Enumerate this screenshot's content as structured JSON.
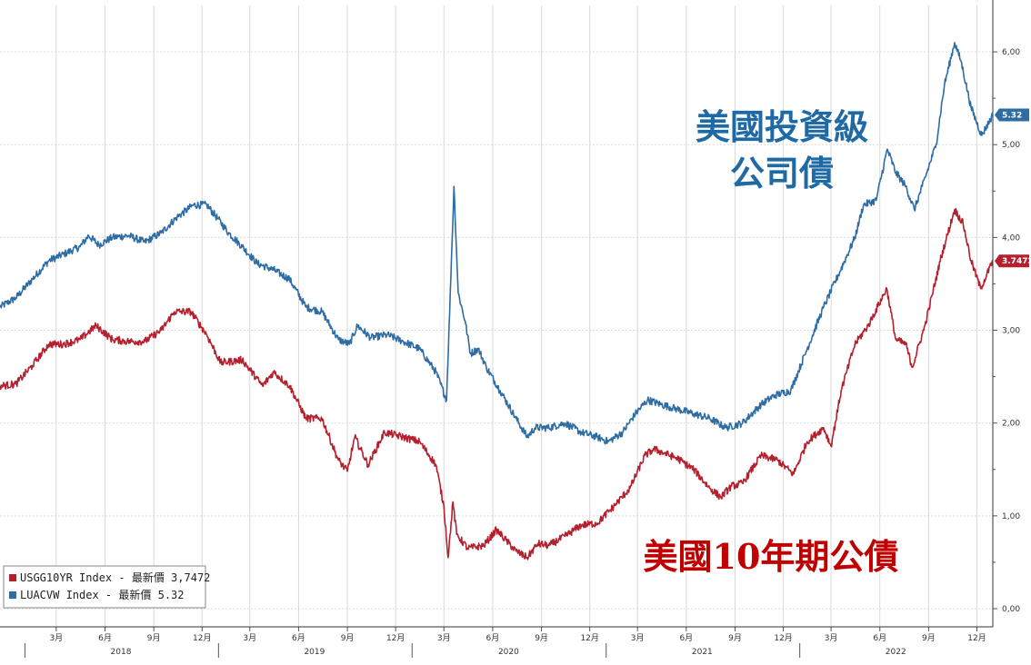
{
  "chart_data": {
    "type": "line",
    "title": "",
    "xlabel": "",
    "ylabel": "",
    "ylim": [
      0,
      6.5
    ],
    "xlim": [
      "2017-11-15",
      "2022-12-31"
    ],
    "y_ticks": [
      "0,00",
      "1,00",
      "2,00",
      "3,00",
      "4,00",
      "5,00",
      "6,00"
    ],
    "x_month_ticks": [
      {
        "date": "2018-03-01",
        "label": "3月"
      },
      {
        "date": "2018-06-01",
        "label": "6月"
      },
      {
        "date": "2018-09-01",
        "label": "9月"
      },
      {
        "date": "2018-12-01",
        "label": "12月"
      },
      {
        "date": "2019-03-01",
        "label": "3月"
      },
      {
        "date": "2019-06-01",
        "label": "6月"
      },
      {
        "date": "2019-09-01",
        "label": "9月"
      },
      {
        "date": "2019-12-01",
        "label": "12月"
      },
      {
        "date": "2020-03-01",
        "label": "3月"
      },
      {
        "date": "2020-06-01",
        "label": "6月"
      },
      {
        "date": "2020-09-01",
        "label": "9月"
      },
      {
        "date": "2020-12-01",
        "label": "12月"
      },
      {
        "date": "2021-03-01",
        "label": "3月"
      },
      {
        "date": "2021-06-01",
        "label": "6月"
      },
      {
        "date": "2021-09-01",
        "label": "9月"
      },
      {
        "date": "2021-12-01",
        "label": "12月"
      },
      {
        "date": "2022-03-01",
        "label": "3月"
      },
      {
        "date": "2022-06-01",
        "label": "6月"
      },
      {
        "date": "2022-09-01",
        "label": "9月"
      },
      {
        "date": "2022-12-01",
        "label": "12月"
      }
    ],
    "x_year_labels": [
      {
        "date": "2018-07-01",
        "label": "2018"
      },
      {
        "date": "2019-07-01",
        "label": "2019"
      },
      {
        "date": "2020-07-01",
        "label": "2020"
      },
      {
        "date": "2021-07-01",
        "label": "2021"
      },
      {
        "date": "2022-07-01",
        "label": "2022"
      }
    ],
    "grid": true,
    "legend_position": "bottom-left",
    "series": [
      {
        "name": "LUACVW Index - 最新價    5.32",
        "color": "#2e6ca4",
        "last_value": "5.32",
        "points": [
          [
            "2017-11-15",
            3.25
          ],
          [
            "2017-12-15",
            3.35
          ],
          [
            "2018-01-15",
            3.55
          ],
          [
            "2018-02-15",
            3.75
          ],
          [
            "2018-03-15",
            3.82
          ],
          [
            "2018-04-15",
            3.9
          ],
          [
            "2018-05-01",
            4.02
          ],
          [
            "2018-05-20",
            3.92
          ],
          [
            "2018-06-15",
            4.0
          ],
          [
            "2018-07-15",
            4.02
          ],
          [
            "2018-08-15",
            3.95
          ],
          [
            "2018-09-15",
            4.05
          ],
          [
            "2018-10-15",
            4.22
          ],
          [
            "2018-11-15",
            4.35
          ],
          [
            "2018-12-10",
            4.35
          ],
          [
            "2018-12-31",
            4.2
          ],
          [
            "2019-01-20",
            4.05
          ],
          [
            "2019-02-15",
            3.9
          ],
          [
            "2019-03-15",
            3.72
          ],
          [
            "2019-04-15",
            3.65
          ],
          [
            "2019-05-15",
            3.55
          ],
          [
            "2019-06-15",
            3.25
          ],
          [
            "2019-07-15",
            3.2
          ],
          [
            "2019-08-15",
            2.9
          ],
          [
            "2019-09-05",
            2.85
          ],
          [
            "2019-09-20",
            3.05
          ],
          [
            "2019-10-15",
            2.92
          ],
          [
            "2019-11-15",
            2.95
          ],
          [
            "2019-12-15",
            2.88
          ],
          [
            "2020-01-15",
            2.8
          ],
          [
            "2020-02-15",
            2.55
          ],
          [
            "2020-03-06",
            2.25
          ],
          [
            "2020-03-20",
            4.55
          ],
          [
            "2020-03-28",
            3.4
          ],
          [
            "2020-04-10",
            3.1
          ],
          [
            "2020-04-20",
            2.75
          ],
          [
            "2020-05-05",
            2.8
          ],
          [
            "2020-05-20",
            2.6
          ],
          [
            "2020-06-15",
            2.35
          ],
          [
            "2020-07-15",
            2.05
          ],
          [
            "2020-08-05",
            1.85
          ],
          [
            "2020-08-20",
            1.95
          ],
          [
            "2020-09-15",
            1.95
          ],
          [
            "2020-10-15",
            2.0
          ],
          [
            "2020-11-15",
            1.9
          ],
          [
            "2020-12-15",
            1.85
          ],
          [
            "2021-01-05",
            1.8
          ],
          [
            "2021-02-01",
            1.9
          ],
          [
            "2021-02-25",
            2.1
          ],
          [
            "2021-03-20",
            2.25
          ],
          [
            "2021-04-15",
            2.2
          ],
          [
            "2021-05-15",
            2.15
          ],
          [
            "2021-06-15",
            2.1
          ],
          [
            "2021-07-15",
            2.05
          ],
          [
            "2021-08-15",
            1.95
          ],
          [
            "2021-09-15",
            2.0
          ],
          [
            "2021-10-20",
            2.2
          ],
          [
            "2021-11-15",
            2.3
          ],
          [
            "2021-12-15",
            2.35
          ],
          [
            "2022-01-15",
            2.8
          ],
          [
            "2022-02-15",
            3.25
          ],
          [
            "2022-03-15",
            3.6
          ],
          [
            "2022-04-15",
            4.0
          ],
          [
            "2022-05-01",
            4.35
          ],
          [
            "2022-05-25",
            4.4
          ],
          [
            "2022-06-15",
            4.95
          ],
          [
            "2022-07-01",
            4.7
          ],
          [
            "2022-07-20",
            4.55
          ],
          [
            "2022-08-05",
            4.3
          ],
          [
            "2022-08-20",
            4.55
          ],
          [
            "2022-09-15",
            5.0
          ],
          [
            "2022-10-01",
            5.65
          ],
          [
            "2022-10-20",
            6.1
          ],
          [
            "2022-11-01",
            5.9
          ],
          [
            "2022-11-20",
            5.4
          ],
          [
            "2022-12-10",
            5.1
          ],
          [
            "2022-12-31",
            5.32
          ]
        ]
      },
      {
        "name": "USGG10YR Index - 最新價 3,7472",
        "color": "#b5202e",
        "last_value": "3.7472",
        "points": [
          [
            "2017-11-15",
            2.4
          ],
          [
            "2017-12-15",
            2.42
          ],
          [
            "2018-01-15",
            2.62
          ],
          [
            "2018-02-15",
            2.85
          ],
          [
            "2018-03-15",
            2.85
          ],
          [
            "2018-04-15",
            2.9
          ],
          [
            "2018-05-15",
            3.05
          ],
          [
            "2018-06-15",
            2.9
          ],
          [
            "2018-07-15",
            2.88
          ],
          [
            "2018-08-15",
            2.88
          ],
          [
            "2018-09-15",
            3.0
          ],
          [
            "2018-10-10",
            3.2
          ],
          [
            "2018-11-10",
            3.2
          ],
          [
            "2018-12-10",
            2.95
          ],
          [
            "2019-01-05",
            2.65
          ],
          [
            "2019-02-15",
            2.68
          ],
          [
            "2019-03-25",
            2.4
          ],
          [
            "2019-04-15",
            2.55
          ],
          [
            "2019-05-15",
            2.4
          ],
          [
            "2019-06-15",
            2.05
          ],
          [
            "2019-07-15",
            2.05
          ],
          [
            "2019-08-15",
            1.6
          ],
          [
            "2019-09-01",
            1.48
          ],
          [
            "2019-09-15",
            1.85
          ],
          [
            "2019-10-10",
            1.55
          ],
          [
            "2019-11-10",
            1.9
          ],
          [
            "2019-12-15",
            1.85
          ],
          [
            "2020-01-15",
            1.8
          ],
          [
            "2020-02-15",
            1.55
          ],
          [
            "2020-03-01",
            1.1
          ],
          [
            "2020-03-09",
            0.55
          ],
          [
            "2020-03-18",
            1.15
          ],
          [
            "2020-03-25",
            0.8
          ],
          [
            "2020-04-15",
            0.65
          ],
          [
            "2020-05-15",
            0.68
          ],
          [
            "2020-06-08",
            0.85
          ],
          [
            "2020-07-15",
            0.62
          ],
          [
            "2020-08-05",
            0.55
          ],
          [
            "2020-08-25",
            0.7
          ],
          [
            "2020-09-15",
            0.68
          ],
          [
            "2020-10-15",
            0.78
          ],
          [
            "2020-11-15",
            0.9
          ],
          [
            "2020-12-15",
            0.92
          ],
          [
            "2021-01-15",
            1.1
          ],
          [
            "2021-02-15",
            1.3
          ],
          [
            "2021-03-15",
            1.65
          ],
          [
            "2021-04-01",
            1.72
          ],
          [
            "2021-05-15",
            1.62
          ],
          [
            "2021-06-15",
            1.5
          ],
          [
            "2021-07-15",
            1.3
          ],
          [
            "2021-08-05",
            1.2
          ],
          [
            "2021-08-25",
            1.32
          ],
          [
            "2021-09-15",
            1.35
          ],
          [
            "2021-10-20",
            1.65
          ],
          [
            "2021-11-20",
            1.6
          ],
          [
            "2021-12-20",
            1.45
          ],
          [
            "2022-01-15",
            1.8
          ],
          [
            "2022-02-15",
            1.95
          ],
          [
            "2022-03-01",
            1.75
          ],
          [
            "2022-03-20",
            2.35
          ],
          [
            "2022-04-15",
            2.85
          ],
          [
            "2022-05-10",
            3.05
          ],
          [
            "2022-06-14",
            3.45
          ],
          [
            "2022-07-01",
            2.9
          ],
          [
            "2022-07-20",
            2.85
          ],
          [
            "2022-08-01",
            2.6
          ],
          [
            "2022-08-25",
            3.05
          ],
          [
            "2022-09-25",
            3.8
          ],
          [
            "2022-10-20",
            4.3
          ],
          [
            "2022-11-05",
            4.15
          ],
          [
            "2022-11-20",
            3.75
          ],
          [
            "2022-12-08",
            3.45
          ],
          [
            "2022-12-31",
            3.7472
          ]
        ]
      }
    ],
    "annotations": {
      "corp_line1": "美國投資級",
      "corp_line2": "公司債",
      "treasury": "美國10年期公債"
    },
    "legend": {
      "entries": [
        {
          "text": "USGG10YR Index - 最新價 3,7472",
          "color": "#b5202e"
        },
        {
          "text": "LUACVW Index - 最新價    5.32",
          "color": "#2e6ca4"
        }
      ]
    },
    "value_tags": [
      {
        "series": "LUACVW",
        "text": "5.32",
        "value": 5.32,
        "color": "#2e6ca4"
      },
      {
        "series": "USGG10YR",
        "text": "3.7472",
        "value": 3.7472,
        "color": "#b5202e"
      }
    ]
  }
}
